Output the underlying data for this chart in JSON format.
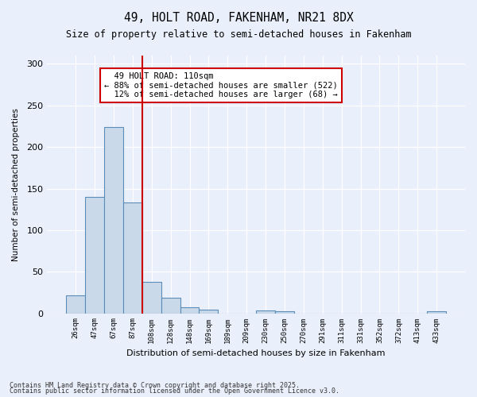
{
  "title": "49, HOLT ROAD, FAKENHAM, NR21 8DX",
  "subtitle": "Size of property relative to semi-detached houses in Fakenham",
  "xlabel": "Distribution of semi-detached houses by size in Fakenham",
  "ylabel": "Number of semi-detached properties",
  "bar_values": [
    22,
    140,
    224,
    133,
    38,
    19,
    7,
    4,
    0,
    0,
    3,
    2,
    0,
    0,
    0,
    0,
    0,
    0,
    0,
    2
  ],
  "bin_labels": [
    "26sqm",
    "47sqm",
    "67sqm",
    "87sqm",
    "108sqm",
    "128sqm",
    "148sqm",
    "169sqm",
    "189sqm",
    "209sqm",
    "230sqm",
    "250sqm",
    "270sqm",
    "291sqm",
    "311sqm",
    "331sqm",
    "352sqm",
    "372sqm",
    "413sqm",
    "433sqm"
  ],
  "bar_color": "#c9d9ea",
  "bar_edge_color": "#5b8db8",
  "red_line_index": 4,
  "red_line_color": "#cc0000",
  "annotation_text": "  49 HOLT ROAD: 110sqm  \n← 88% of semi-detached houses are smaller (522)\n  12% of semi-detached houses are larger (68) →",
  "annotation_box_color": "#ffffff",
  "annotation_box_edge": "#cc0000",
  "ylim": [
    0,
    310
  ],
  "yticks": [
    0,
    50,
    100,
    150,
    200,
    250,
    300
  ],
  "background_color": "#eaf0fb",
  "grid_color": "#ffffff",
  "footer1": "Contains HM Land Registry data © Crown copyright and database right 2025.",
  "footer2": "Contains public sector information licensed under the Open Government Licence v3.0."
}
